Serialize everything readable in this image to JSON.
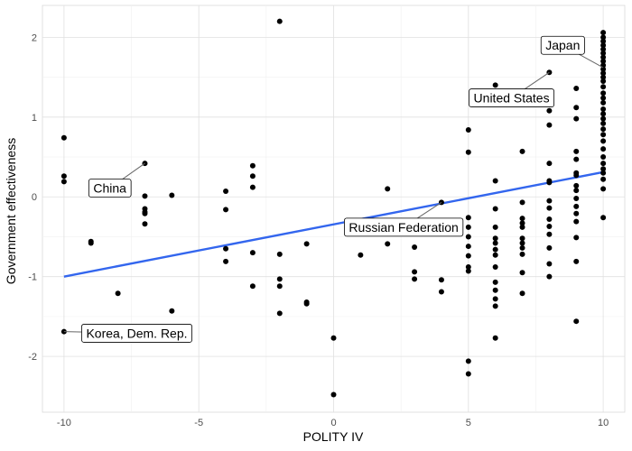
{
  "chart_data": {
    "type": "scatter",
    "xlabel": "POLITY IV",
    "ylabel": "Government effectiveness",
    "xlim": [
      -10.8,
      10.8
    ],
    "ylim": [
      -2.7,
      2.4
    ],
    "x_ticks": [
      -10,
      -5,
      0,
      5,
      10
    ],
    "x_tick_labels": [
      "-10",
      "-5",
      "0",
      "5",
      "10"
    ],
    "y_ticks": [
      -2,
      -1,
      0,
      1,
      2
    ],
    "y_tick_labels": [
      "-2",
      "-1",
      "0",
      "1",
      "2"
    ],
    "grid": true,
    "colors": {
      "points": "#000000",
      "trend": "#3366ee",
      "grid_major": "#e0e0e0",
      "grid_minor": "#f0f0f0"
    },
    "trend_line": {
      "x": [
        -10,
        10
      ],
      "y": [
        -1.0,
        0.31
      ]
    },
    "points": [
      {
        "x": -10,
        "y": 0.74
      },
      {
        "x": -10,
        "y": 0.26
      },
      {
        "x": -10,
        "y": 0.19
      },
      {
        "x": -10,
        "y": -1.69
      },
      {
        "x": -9,
        "y": -0.56
      },
      {
        "x": -9,
        "y": -0.58
      },
      {
        "x": -8,
        "y": -1.21
      },
      {
        "x": -7,
        "y": 0.42
      },
      {
        "x": -7,
        "y": 0.01
      },
      {
        "x": -7,
        "y": -0.15
      },
      {
        "x": -7,
        "y": -0.19
      },
      {
        "x": -7,
        "y": -0.21
      },
      {
        "x": -7,
        "y": -0.34
      },
      {
        "x": -6,
        "y": 0.02
      },
      {
        "x": -6,
        "y": -1.43
      },
      {
        "x": -4,
        "y": 0.07
      },
      {
        "x": -4,
        "y": -0.16
      },
      {
        "x": -4,
        "y": -0.65
      },
      {
        "x": -4,
        "y": -0.81
      },
      {
        "x": -3,
        "y": 0.39
      },
      {
        "x": -3,
        "y": 0.26
      },
      {
        "x": -3,
        "y": 0.12
      },
      {
        "x": -3,
        "y": -0.7
      },
      {
        "x": -3,
        "y": -1.12
      },
      {
        "x": -2,
        "y": 2.2
      },
      {
        "x": -2,
        "y": -0.72
      },
      {
        "x": -2,
        "y": -1.03
      },
      {
        "x": -2,
        "y": -1.12
      },
      {
        "x": -2,
        "y": -1.46
      },
      {
        "x": -1,
        "y": -0.59
      },
      {
        "x": -1,
        "y": -1.32
      },
      {
        "x": -1,
        "y": -1.34
      },
      {
        "x": 0,
        "y": -1.77
      },
      {
        "x": 0,
        "y": -2.48
      },
      {
        "x": 1,
        "y": -0.73
      },
      {
        "x": 2,
        "y": 0.1
      },
      {
        "x": 2,
        "y": -0.59
      },
      {
        "x": 3,
        "y": -0.63
      },
      {
        "x": 3,
        "y": -0.94
      },
      {
        "x": 3,
        "y": -1.03
      },
      {
        "x": 4,
        "y": -0.07
      },
      {
        "x": 4,
        "y": -1.04
      },
      {
        "x": 4,
        "y": -1.19
      },
      {
        "x": 5,
        "y": 0.84
      },
      {
        "x": 5,
        "y": 0.56
      },
      {
        "x": 5,
        "y": -0.26
      },
      {
        "x": 5,
        "y": -0.38
      },
      {
        "x": 5,
        "y": -0.5
      },
      {
        "x": 5,
        "y": -0.62
      },
      {
        "x": 5,
        "y": -0.74
      },
      {
        "x": 5,
        "y": -0.88
      },
      {
        "x": 5,
        "y": -0.93
      },
      {
        "x": 5,
        "y": -2.06
      },
      {
        "x": 5,
        "y": -2.22
      },
      {
        "x": 6,
        "y": 1.4
      },
      {
        "x": 6,
        "y": 0.2
      },
      {
        "x": 6,
        "y": -0.15
      },
      {
        "x": 6,
        "y": -0.38
      },
      {
        "x": 6,
        "y": -0.52
      },
      {
        "x": 6,
        "y": -0.58
      },
      {
        "x": 6,
        "y": -0.66
      },
      {
        "x": 6,
        "y": -0.73
      },
      {
        "x": 6,
        "y": -0.88
      },
      {
        "x": 6,
        "y": -1.07
      },
      {
        "x": 6,
        "y": -1.17
      },
      {
        "x": 6,
        "y": -1.28
      },
      {
        "x": 6,
        "y": -1.37
      },
      {
        "x": 6,
        "y": -1.77
      },
      {
        "x": 7,
        "y": 0.57
      },
      {
        "x": 7,
        "y": -0.07
      },
      {
        "x": 7,
        "y": -0.27
      },
      {
        "x": 7,
        "y": -0.33
      },
      {
        "x": 7,
        "y": -0.38
      },
      {
        "x": 7,
        "y": -0.52
      },
      {
        "x": 7,
        "y": -0.58
      },
      {
        "x": 7,
        "y": -0.64
      },
      {
        "x": 7,
        "y": -0.72
      },
      {
        "x": 7,
        "y": -0.95
      },
      {
        "x": 7,
        "y": -1.21
      },
      {
        "x": 8,
        "y": 1.56
      },
      {
        "x": 8,
        "y": 1.08
      },
      {
        "x": 8,
        "y": 0.9
      },
      {
        "x": 8,
        "y": 0.42
      },
      {
        "x": 8,
        "y": 0.2
      },
      {
        "x": 8,
        "y": 0.18
      },
      {
        "x": 8,
        "y": -0.05
      },
      {
        "x": 8,
        "y": -0.14
      },
      {
        "x": 8,
        "y": -0.28
      },
      {
        "x": 8,
        "y": -0.37
      },
      {
        "x": 8,
        "y": -0.47
      },
      {
        "x": 8,
        "y": -0.64
      },
      {
        "x": 8,
        "y": -0.84
      },
      {
        "x": 8,
        "y": -1.0
      },
      {
        "x": 9,
        "y": 1.36
      },
      {
        "x": 9,
        "y": 1.12
      },
      {
        "x": 9,
        "y": 0.98
      },
      {
        "x": 9,
        "y": 0.57
      },
      {
        "x": 9,
        "y": 0.47
      },
      {
        "x": 9,
        "y": 0.3
      },
      {
        "x": 9,
        "y": 0.27
      },
      {
        "x": 9,
        "y": 0.14
      },
      {
        "x": 9,
        "y": 0.08
      },
      {
        "x": 9,
        "y": -0.02
      },
      {
        "x": 9,
        "y": -0.12
      },
      {
        "x": 9,
        "y": -0.21
      },
      {
        "x": 9,
        "y": -0.31
      },
      {
        "x": 9,
        "y": -0.51
      },
      {
        "x": 9,
        "y": -0.81
      },
      {
        "x": 9,
        "y": -1.56
      },
      {
        "x": 10,
        "y": 2.06
      },
      {
        "x": 10,
        "y": 2.0
      },
      {
        "x": 10,
        "y": 1.95
      },
      {
        "x": 10,
        "y": 1.9
      },
      {
        "x": 10,
        "y": 1.85
      },
      {
        "x": 10,
        "y": 1.8
      },
      {
        "x": 10,
        "y": 1.75
      },
      {
        "x": 10,
        "y": 1.7
      },
      {
        "x": 10,
        "y": 1.65
      },
      {
        "x": 10,
        "y": 1.6
      },
      {
        "x": 10,
        "y": 1.55
      },
      {
        "x": 10,
        "y": 1.5
      },
      {
        "x": 10,
        "y": 1.45
      },
      {
        "x": 10,
        "y": 1.38
      },
      {
        "x": 10,
        "y": 1.3
      },
      {
        "x": 10,
        "y": 1.24
      },
      {
        "x": 10,
        "y": 1.18
      },
      {
        "x": 10,
        "y": 1.1
      },
      {
        "x": 10,
        "y": 1.04
      },
      {
        "x": 10,
        "y": 0.98
      },
      {
        "x": 10,
        "y": 0.92
      },
      {
        "x": 10,
        "y": 0.85
      },
      {
        "x": 10,
        "y": 0.78
      },
      {
        "x": 10,
        "y": 0.7
      },
      {
        "x": 10,
        "y": 0.6
      },
      {
        "x": 10,
        "y": 0.5
      },
      {
        "x": 10,
        "y": 0.42
      },
      {
        "x": 10,
        "y": 0.35
      },
      {
        "x": 10,
        "y": 0.3
      },
      {
        "x": 10,
        "y": 0.22
      },
      {
        "x": 10,
        "y": 0.1
      },
      {
        "x": 10,
        "y": -0.26
      }
    ],
    "annotations": [
      {
        "label": "Japan",
        "x": 10,
        "y": 1.62,
        "label_x": 8.5,
        "label_y": 1.9
      },
      {
        "label": "United States",
        "x": 8,
        "y": 1.56,
        "label_x": 6.6,
        "label_y": 1.24
      },
      {
        "label": "China",
        "x": -7,
        "y": 0.42,
        "label_x": -8.3,
        "label_y": 0.11
      },
      {
        "label": "Russian Federation",
        "x": 4,
        "y": -0.07,
        "label_x": 2.6,
        "label_y": -0.38
      },
      {
        "label": "Korea, Dem. Rep.",
        "x": -10,
        "y": -1.69,
        "label_x": -7.3,
        "label_y": -1.71
      }
    ]
  }
}
